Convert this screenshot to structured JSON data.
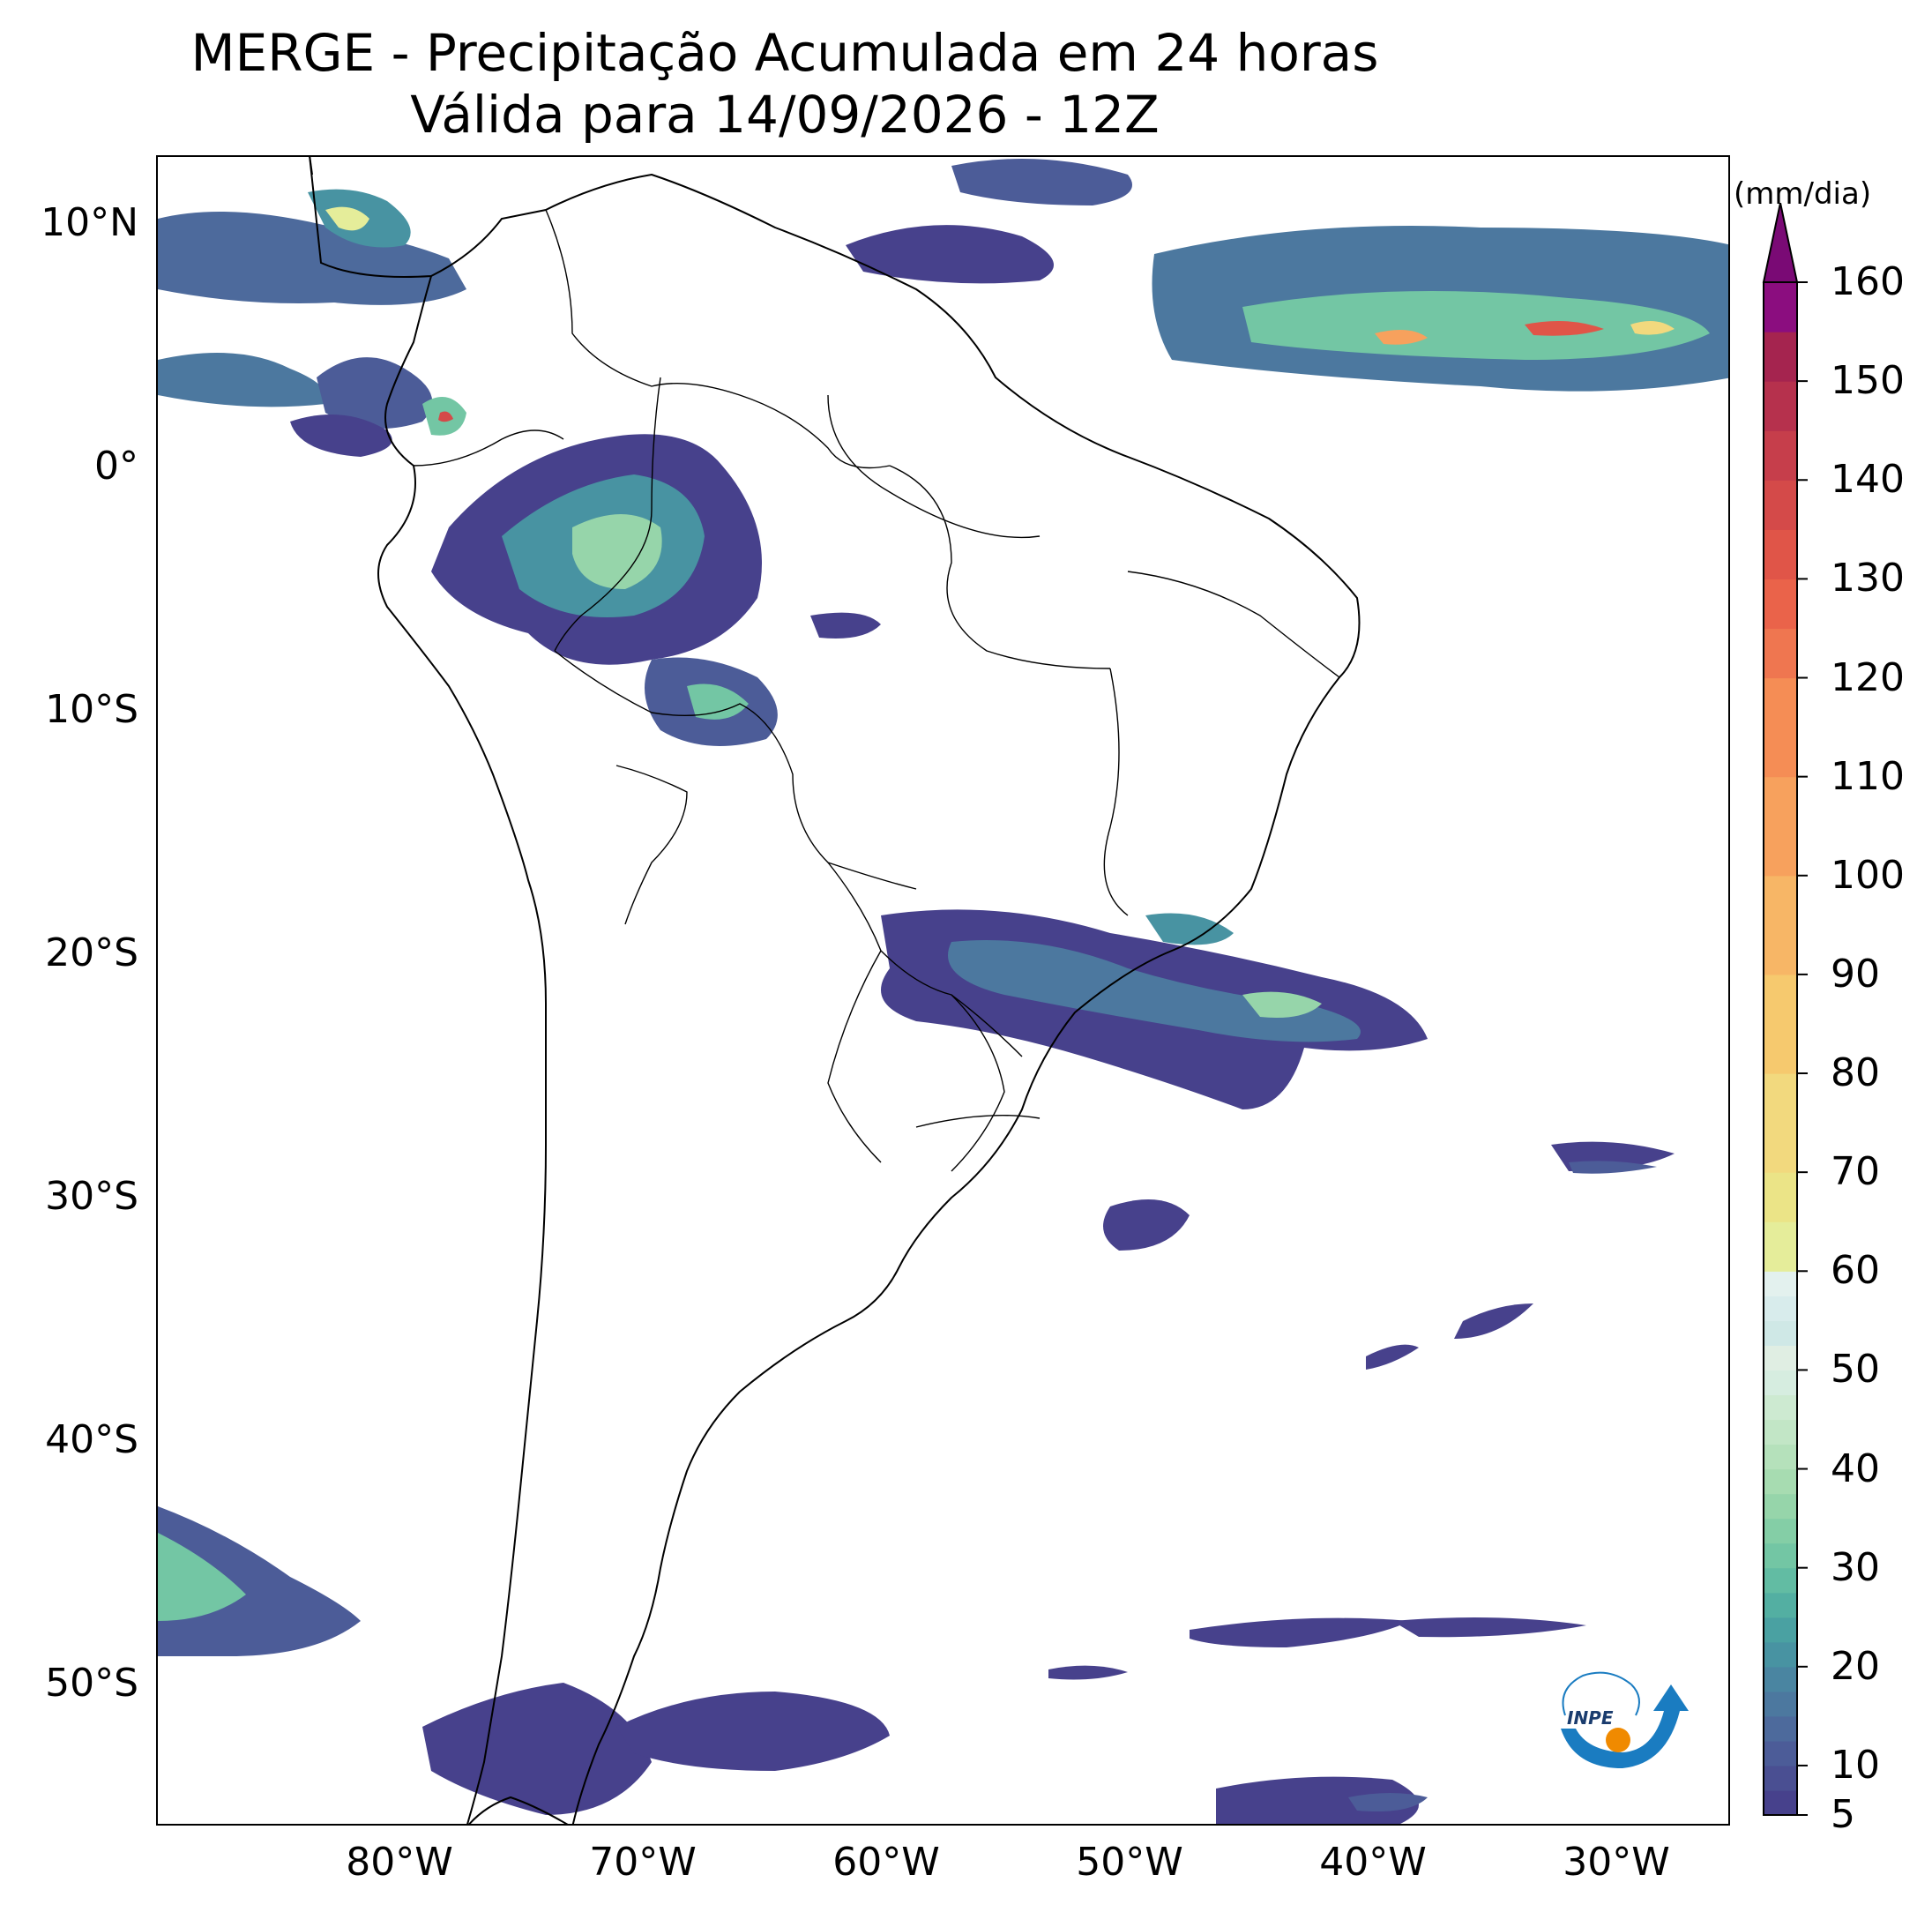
{
  "title": {
    "line1": "MERGE - Precipitação Acumulada em 24 horas",
    "line2": "Válida para 14/09/2026 - 12Z"
  },
  "axes": {
    "lat_labels": [
      "10°N",
      "0°",
      "10°S",
      "20°S",
      "30°S",
      "40°S",
      "50°S"
    ],
    "lon_labels": [
      "80°W",
      "70°W",
      "60°W",
      "50°W",
      "40°W",
      "30°W"
    ]
  },
  "colorbar": {
    "unit": "(mm/dia)",
    "tick_labels": [
      "5",
      "10",
      "20",
      "30",
      "40",
      "50",
      "60",
      "70",
      "80",
      "90",
      "100",
      "110",
      "120",
      "130",
      "140",
      "150",
      "160"
    ],
    "levels": [
      5,
      7.5,
      10,
      12.5,
      15,
      17.5,
      20,
      22.5,
      25,
      27.5,
      30,
      32.5,
      35,
      37.5,
      40,
      42.5,
      45,
      47.5,
      50,
      52.5,
      55,
      57.5,
      60,
      65,
      70,
      80,
      90,
      100,
      110,
      120,
      125,
      130,
      135,
      140,
      145,
      150,
      155,
      160
    ],
    "colors": [
      "#47418c",
      "#4a4f92",
      "#4c5c98",
      "#4d6a9c",
      "#4c789f",
      "#4a85a1",
      "#4893a2",
      "#4aa1a2",
      "#53afa2",
      "#62bca3",
      "#73c6a4",
      "#84cea6",
      "#96d5aa",
      "#a7dcb1",
      "#b5e1bb",
      "#c2e6c6",
      "#cdead1",
      "#d6ede0",
      "#e0eee3",
      "#cfe8e6",
      "#d8ecec",
      "#e3f1ee",
      "#e5ed9a",
      "#ebe487",
      "#f2d97e",
      "#f6c96e",
      "#f7b666",
      "#f7a15d",
      "#f58d55",
      "#ef7650",
      "#ea634a",
      "#e05548",
      "#d44a49",
      "#c63e4b",
      "#b6314d",
      "#a5244f",
      "#8b0d7f"
    ],
    "extend_color": "#7a0a75"
  },
  "logo": {
    "text": "INPE"
  },
  "colors": {
    "frame": "#000000",
    "land_border": "#000000"
  }
}
